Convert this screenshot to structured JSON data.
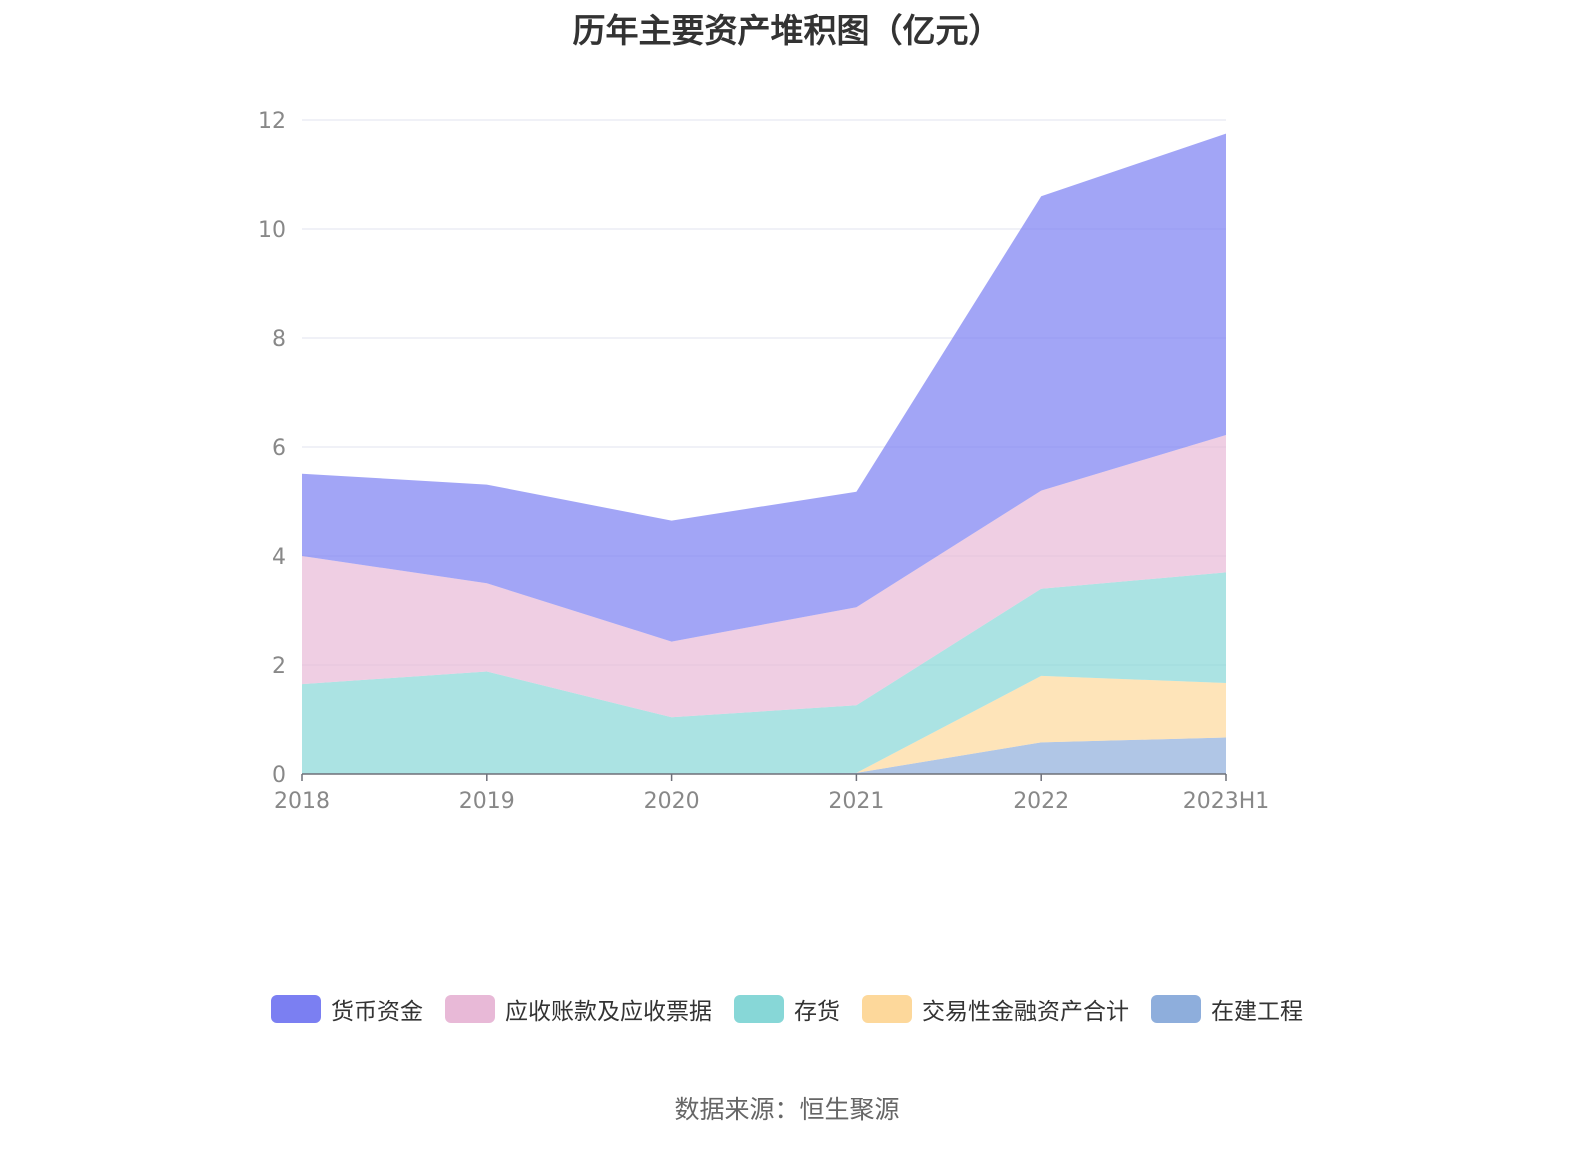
{
  "title": "历年主要资产堆积图（亿元）",
  "source": "数据来源：恒生聚源",
  "chart_data": {
    "type": "area",
    "stacked": true,
    "title": "历年主要资产堆积图（亿元）",
    "categories": [
      "2018",
      "2019",
      "2020",
      "2021",
      "2022",
      "2023H1"
    ],
    "ylim": [
      0,
      12
    ],
    "yticks": [
      0,
      2,
      4,
      6,
      8,
      10,
      12
    ],
    "grid": true,
    "legend_position": "bottom",
    "series": [
      {
        "name": "在建工程",
        "color": "#8eaedc",
        "values": [
          0,
          0,
          0,
          0.02,
          0.58,
          0.67
        ]
      },
      {
        "name": "交易性金融资产合计",
        "color": "#fdd89b",
        "values": [
          0,
          0,
          0,
          0,
          1.22,
          1.0
        ]
      },
      {
        "name": "存货",
        "color": "#87d7d7",
        "values": [
          1.65,
          1.88,
          1.04,
          1.24,
          1.6,
          2.03
        ]
      },
      {
        "name": "应收账款及应收票据",
        "color": "#e8b9d7",
        "values": [
          2.35,
          1.62,
          1.39,
          1.8,
          1.8,
          2.52
        ]
      },
      {
        "name": "货币资金",
        "color": "#7b7ff2",
        "values": [
          1.51,
          1.81,
          2.22,
          2.12,
          5.4,
          5.53
        ]
      }
    ],
    "legend_order": [
      "货币资金",
      "应收账款及应收票据",
      "存货",
      "交易性金融资产合计",
      "在建工程"
    ]
  }
}
